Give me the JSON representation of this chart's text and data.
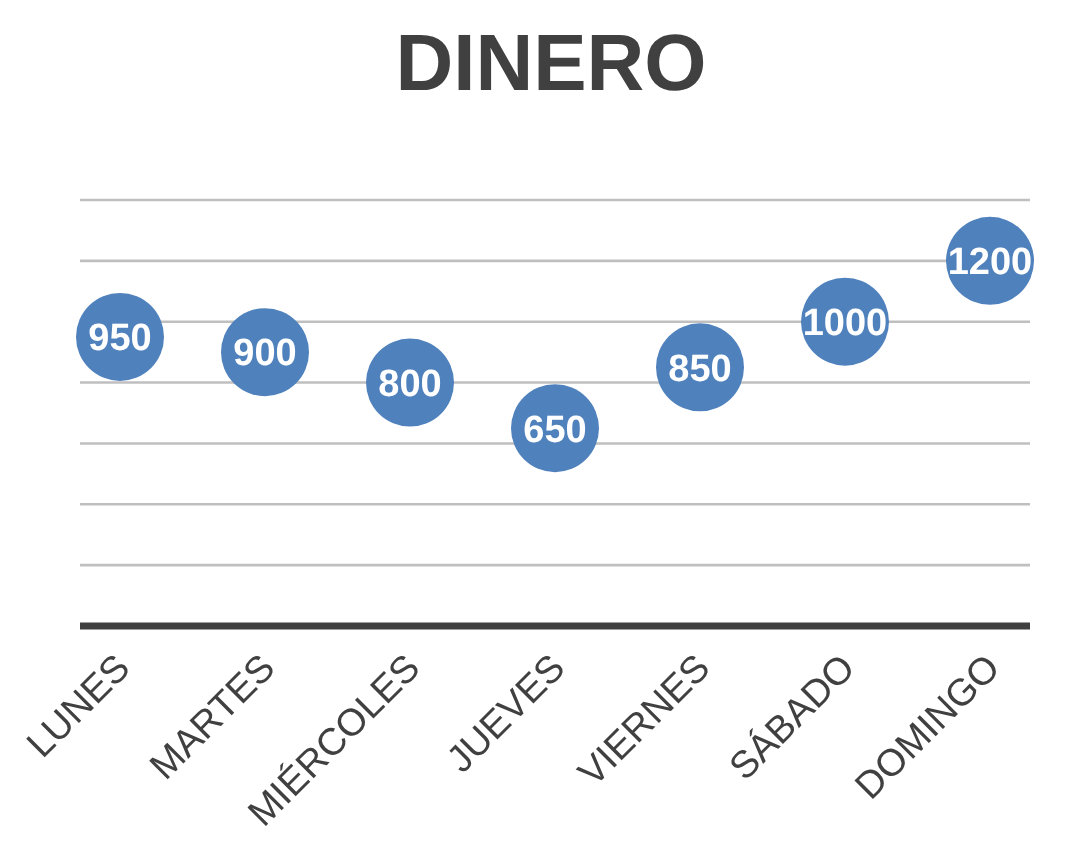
{
  "chart_data": {
    "type": "scatter",
    "title": "DINERO",
    "categories": [
      "LUNES",
      "MARTES",
      "MIÉRCOLES",
      "JUEVES",
      "VIERNES",
      "SÁBADO",
      "DOMINGO"
    ],
    "series": [
      {
        "color": "#4f81bd",
        "values": [
          950,
          900,
          800,
          650,
          850,
          1000,
          1200
        ]
      }
    ],
    "ylim": [
      0,
      1400
    ],
    "yticks": [
      {
        "value": 0,
        "label": null
      },
      {
        "value": 200,
        "label": null
      },
      {
        "value": 400,
        "label": null
      },
      {
        "value": 600,
        "label": null
      },
      {
        "value": 800,
        "label": null
      },
      {
        "value": 1000,
        "label": null
      },
      {
        "value": 1200,
        "label": null
      },
      {
        "value": 1400,
        "label": null
      }
    ],
    "tick_labels": "x",
    "grid": "y",
    "marker": "circle",
    "data_labels": true
  }
}
